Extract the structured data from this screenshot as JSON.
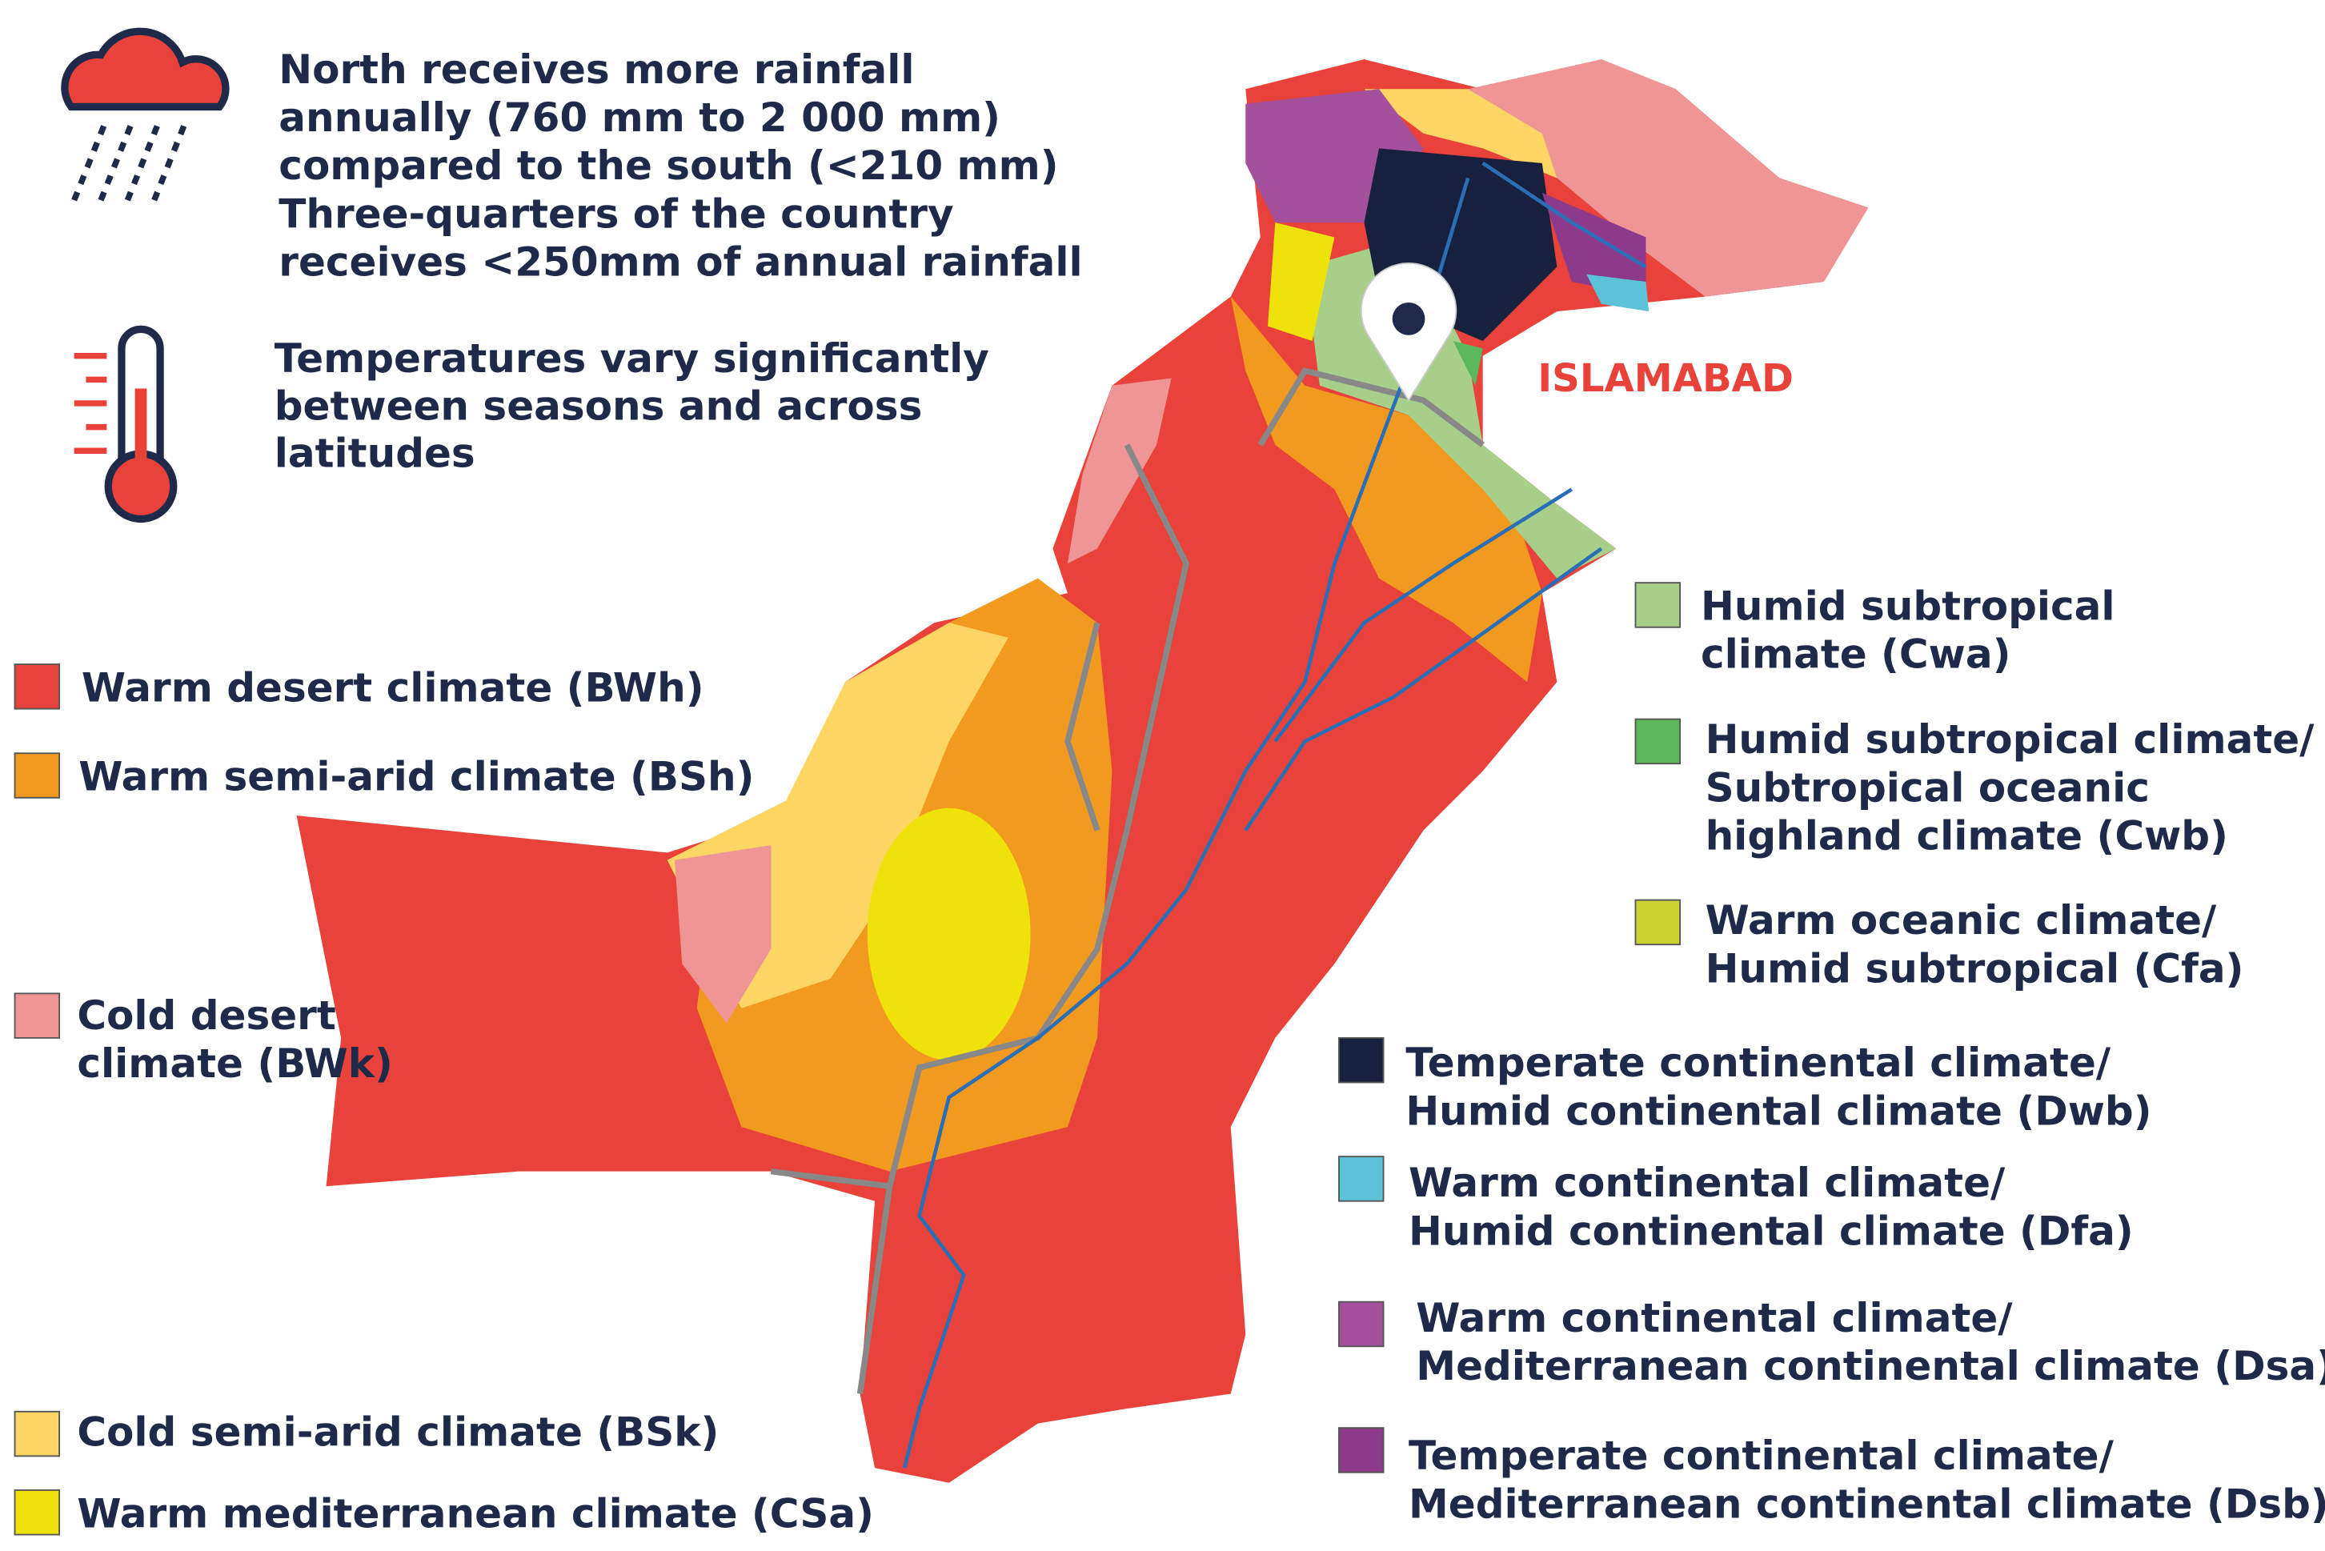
{
  "notes": {
    "rainfall": [
      "North receives more rainfall",
      "annually (760 mm to 2 000 mm)",
      "compared to the south (<210 mm)",
      "Three-quarters of the country",
      "receives <250mm of annual rainfall"
    ],
    "temperature": [
      "Temperatures vary significantly",
      "between seasons and across",
      "latitudes"
    ]
  },
  "map": {
    "city": "ISLAMABAD"
  },
  "legend": [
    {
      "label": [
        "Warm desert climate (BWh)"
      ],
      "color": "#e8423b"
    },
    {
      "label": [
        "Warm semi-arid climate (BSh)"
      ],
      "color": "#f29a1f"
    },
    {
      "label": [
        "Cold desert",
        "climate (BWk)"
      ],
      "color": "#f09595"
    },
    {
      "label": [
        "Cold semi-arid climate (BSk)"
      ],
      "color": "#fbd665"
    },
    {
      "label": [
        "Warm mediterranean climate (CSa)"
      ],
      "color": "#eee20a"
    },
    {
      "label": [
        "Humid subtropical",
        "climate (Cwa)"
      ],
      "color": "#a8cf8a"
    },
    {
      "label": [
        "Humid subtropical climate/",
        "Subtropical oceanic",
        "highland climate (Cwb)"
      ],
      "color": "#5cb85c"
    },
    {
      "label": [
        "Warm oceanic climate/",
        "Humid subtropical (Cfa)"
      ],
      "color": "#c8d433"
    },
    {
      "label": [
        "Temperate continental climate/",
        "Humid continental climate (Dwb)"
      ],
      "color": "#17203d"
    },
    {
      "label": [
        "Warm continental climate/",
        "Humid continental climate (Dfa)"
      ],
      "color": "#5bc2d8"
    },
    {
      "label": [
        "Warm continental climate/",
        "Mediterranean continental climate (Dsa)"
      ],
      "color": "#a5509c"
    },
    {
      "label": [
        "Temperate continental climate/",
        "Mediterranean continental climate (Dsb)"
      ],
      "color": "#8e3a8c"
    }
  ]
}
